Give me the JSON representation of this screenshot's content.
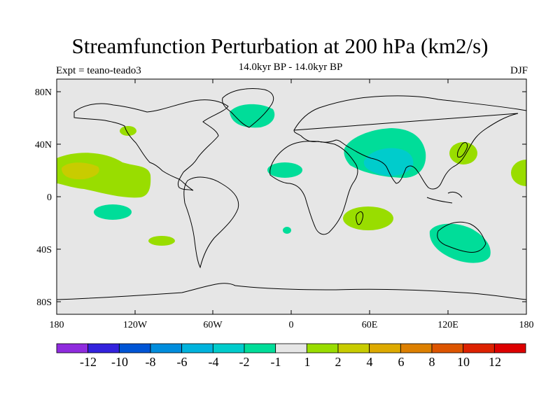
{
  "title": "Streamfunction Perturbation at 200 hPa (km2/s)",
  "experiment_label": "Expt = teano-teado3",
  "period_label": "14.0kyr BP - 14.0kyr BP",
  "season_label": "DJF",
  "colors": {
    "ocean_background": "#e6e6e6",
    "coastline": "#000000",
    "positive_1_2": "#99dd00",
    "positive_2_4": "#c8cc00",
    "negative_m2_m1": "#00dd99",
    "negative_m4_m2": "#00cccc"
  },
  "map": {
    "lon_range": [
      -180,
      180
    ],
    "lat_range": [
      -90,
      90
    ],
    "x_ticks": [
      "180",
      "120W",
      "60W",
      "0",
      "60E",
      "120E",
      "180"
    ],
    "y_ticks": [
      "80N",
      "40N",
      "0",
      "40S",
      "80S"
    ]
  },
  "anomalies": [
    {
      "sign": "positive",
      "level": "1 to 2",
      "center": "eastern tropical North Pacific (~165W, 20N)"
    },
    {
      "sign": "positive",
      "level": "2 to 4",
      "center": "central tropical North Pacific (~160W, 21N)"
    },
    {
      "sign": "positive",
      "level": "1 to 2",
      "center": "Japan / NW Pacific (~135E, 35N)"
    },
    {
      "sign": "positive",
      "level": "1 to 2",
      "center": "Madagascar / SW Indian Ocean (~60E, 18S)"
    },
    {
      "sign": "positive",
      "level": "1 to 2",
      "center": "SE Pacific (~105W, 33S)"
    },
    {
      "sign": "positive",
      "level": "1 to 2",
      "center": "western Pacific dateline (~178E, 18N)"
    },
    {
      "sign": "negative",
      "level": "-2 to -1",
      "center": "South Asia / Tibet (~70E, 30N)"
    },
    {
      "sign": "negative",
      "level": "-4 to -2",
      "center": "India (~80E, 29N)"
    },
    {
      "sign": "negative",
      "level": "-2 to -1",
      "center": "Greenland / N Atlantic (~32W, 63N)"
    },
    {
      "sign": "negative",
      "level": "-2 to -1",
      "center": "Australia (~132E, 33S)"
    },
    {
      "sign": "negative",
      "level": "-2 to -1",
      "center": "tropical Atlantic / W Africa (~5W, 20N)"
    },
    {
      "sign": "negative",
      "level": "-2 to -1",
      "center": "South Pacific (~140W, 12S)"
    },
    {
      "sign": "negative",
      "level": "-2 to -1",
      "center": "South Atlantic (~3W, 25S)"
    }
  ],
  "colorbar": {
    "colors": [
      "#8f2bde",
      "#3322dd",
      "#0055d5",
      "#008ddd",
      "#00b3dd",
      "#00cccc",
      "#00dd99",
      "#e6e6e6",
      "#99dd00",
      "#c8cc00",
      "#ddaa00",
      "#dd8000",
      "#dd5500",
      "#dd2200",
      "#dd0000"
    ],
    "labels": [
      "-12",
      "-10",
      "-8",
      "-6",
      "-4",
      "-2",
      "-1",
      "1",
      "2",
      "4",
      "6",
      "8",
      "10",
      "12"
    ]
  }
}
